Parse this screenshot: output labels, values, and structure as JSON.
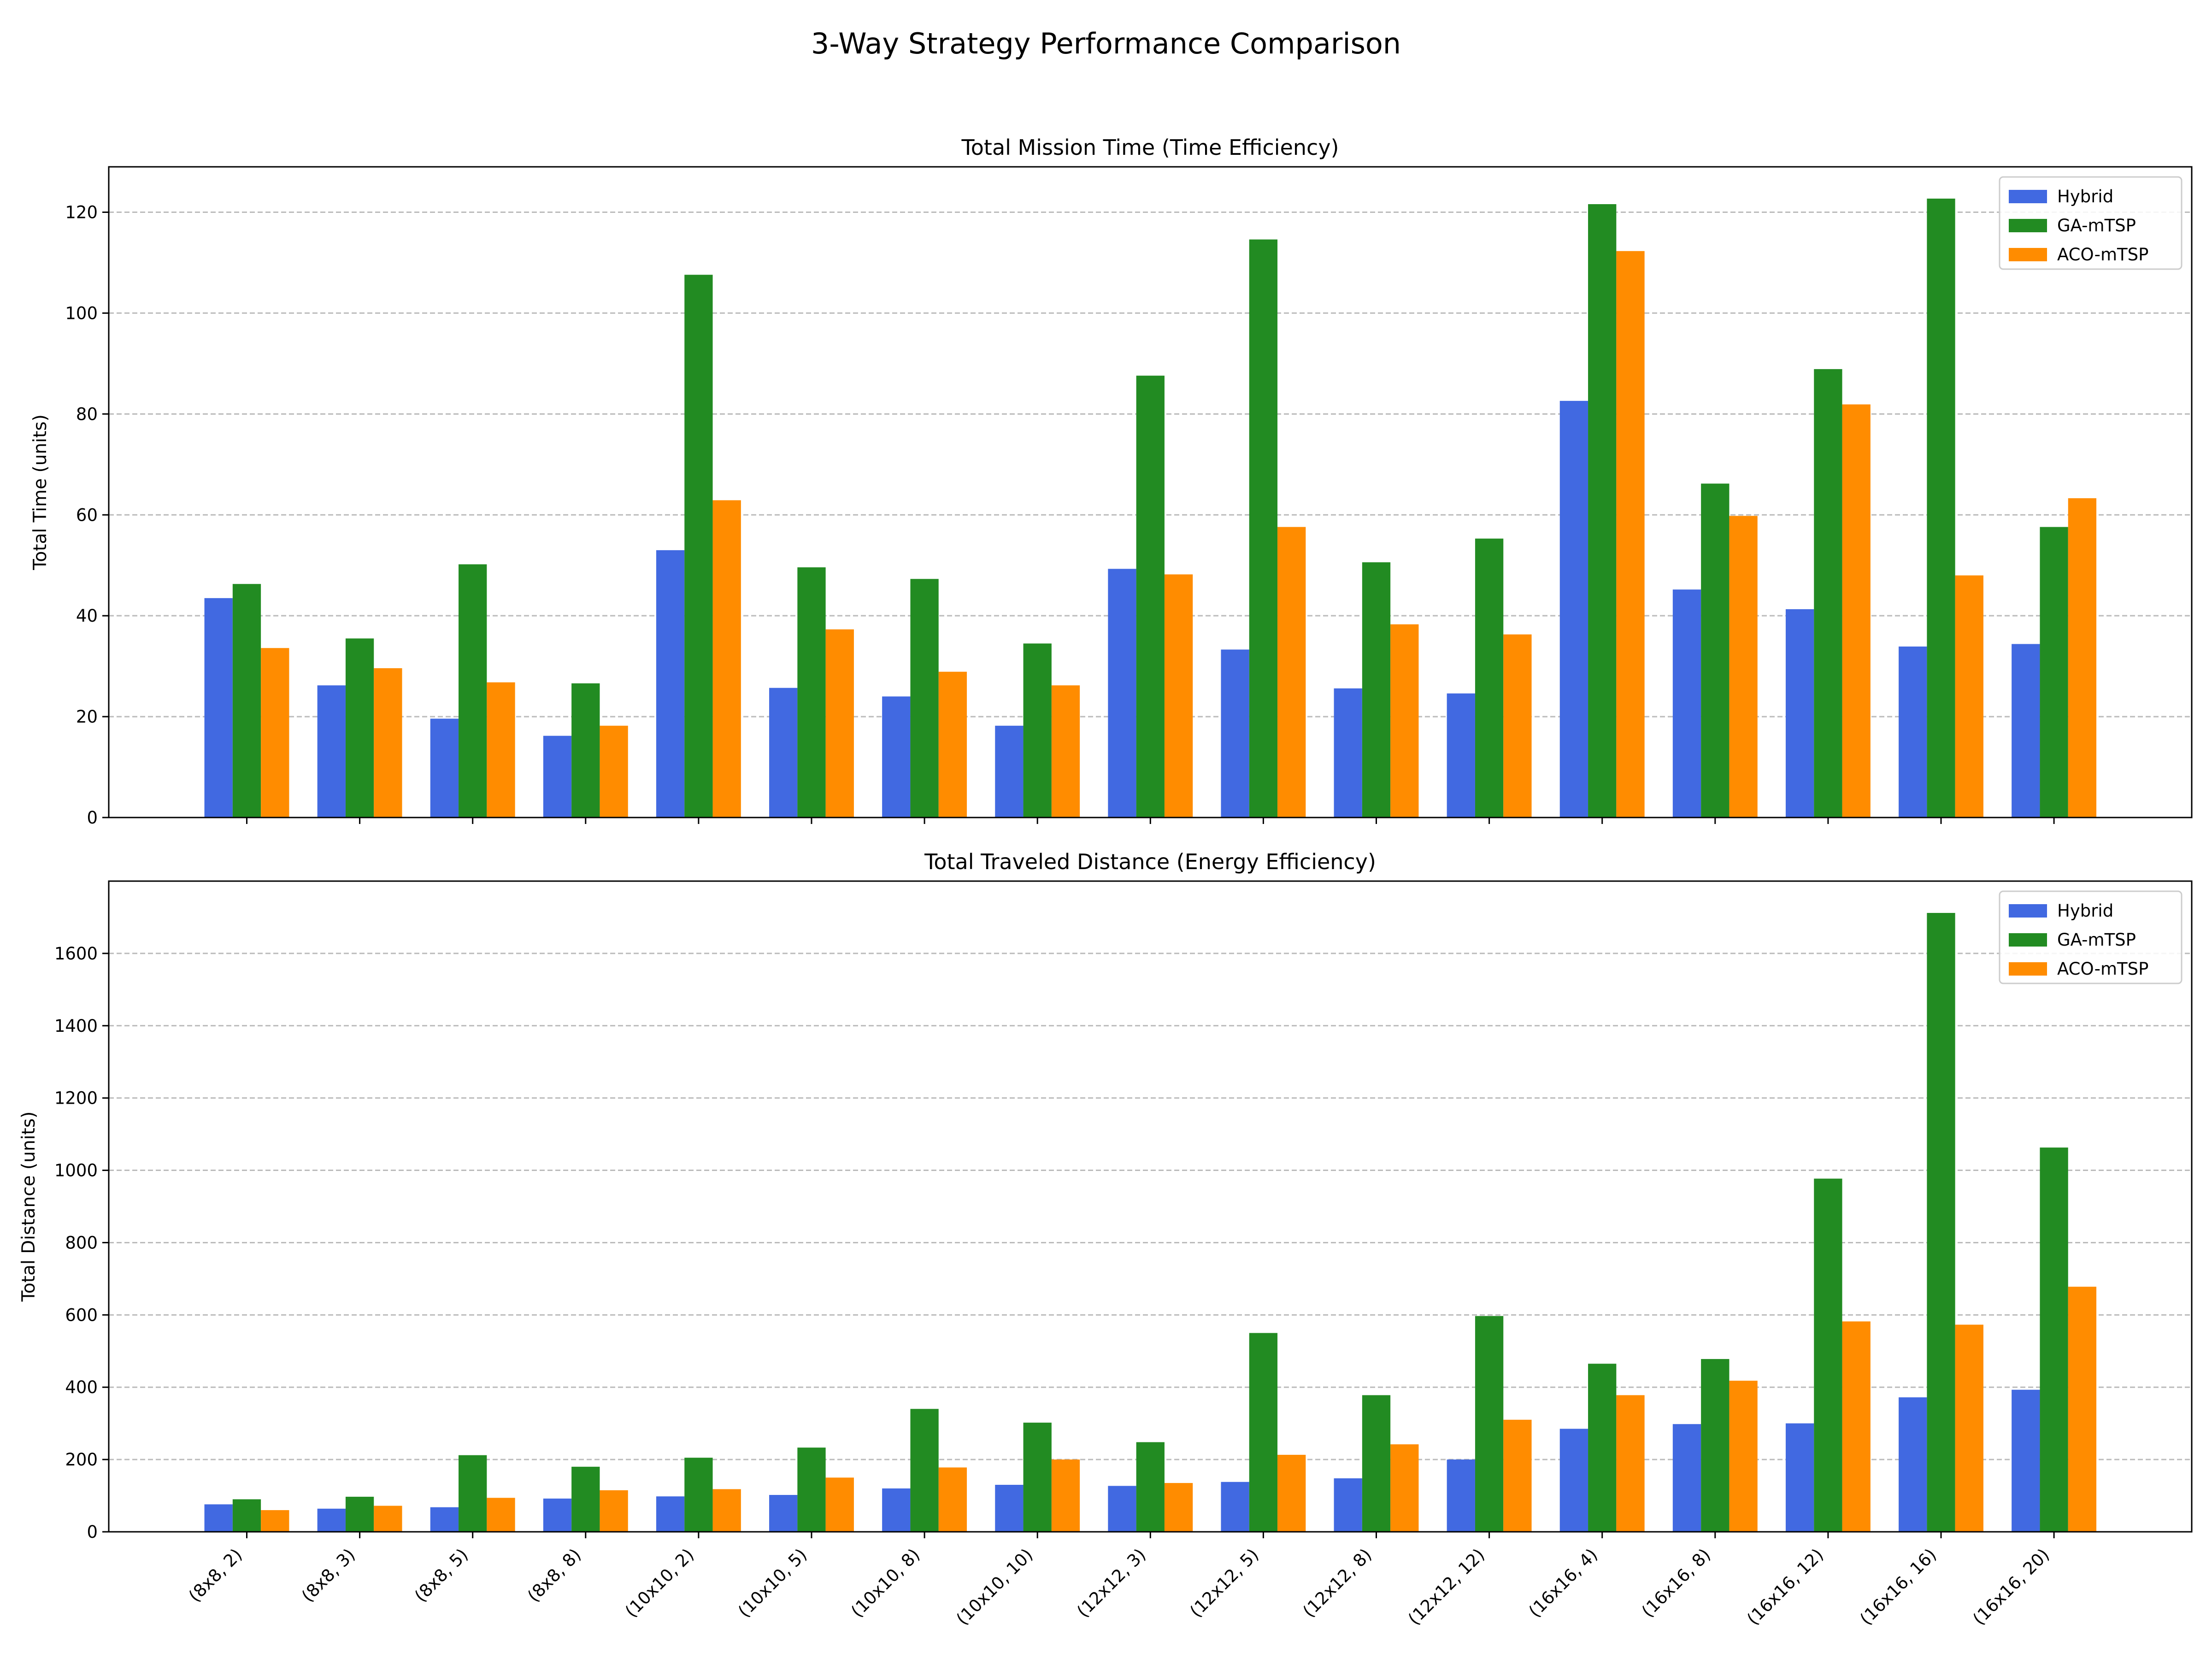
{
  "figure": {
    "title": "3-Way Strategy Performance Comparison"
  },
  "colors": {
    "Hybrid": "#4169e1",
    "GA-mTSP": "#228b22",
    "ACO-mTSP": "#ff8c00",
    "grid": "#bbbbbb"
  },
  "chart_data": [
    {
      "type": "bar",
      "title": "Total Mission Time (Time Efficiency)",
      "xlabel": "",
      "ylabel": "Total Time (units)",
      "ylim": [
        0,
        129
      ],
      "yticks": [
        0,
        20,
        40,
        60,
        80,
        100,
        120
      ],
      "grid": "y-dashed",
      "legend": "top-right",
      "categories": [
        "(8x8, 2)",
        "(8x8, 3)",
        "(8x8, 5)",
        "(8x8, 8)",
        "(10x10, 2)",
        "(10x10, 5)",
        "(10x10, 8)",
        "(10x10, 10)",
        "(12x12, 3)",
        "(12x12, 5)",
        "(12x12, 8)",
        "(12x12, 12)",
        "(16x16, 4)",
        "(16x16, 8)",
        "(16x16, 12)",
        "(16x16, 16)",
        "(16x16, 20)"
      ],
      "show_xticklabels": false,
      "series": [
        {
          "name": "Hybrid",
          "values": [
            43.5,
            26.2,
            19.6,
            16.2,
            53.0,
            25.7,
            24.0,
            18.2,
            49.3,
            33.3,
            25.6,
            24.6,
            82.6,
            45.2,
            41.3,
            33.9,
            34.4
          ]
        },
        {
          "name": "GA-mTSP",
          "values": [
            46.3,
            35.5,
            50.2,
            26.6,
            107.6,
            49.6,
            47.3,
            34.5,
            87.6,
            114.6,
            50.6,
            55.3,
            121.6,
            66.2,
            88.9,
            122.7,
            57.6
          ]
        },
        {
          "name": "ACO-mTSP",
          "values": [
            33.6,
            29.6,
            26.8,
            18.2,
            62.9,
            37.3,
            28.9,
            26.2,
            48.2,
            57.6,
            38.3,
            36.3,
            112.3,
            59.8,
            81.9,
            48.0,
            63.3
          ]
        }
      ]
    },
    {
      "type": "bar",
      "title": "Total Traveled Distance (Energy Efficiency)",
      "xlabel": "",
      "ylabel": "Total Distance (units)",
      "ylim": [
        0,
        1800
      ],
      "yticks": [
        0,
        200,
        400,
        600,
        800,
        1000,
        1200,
        1400,
        1600
      ],
      "grid": "y-dashed",
      "legend": "top-right",
      "categories": [
        "(8x8, 2)",
        "(8x8, 3)",
        "(8x8, 5)",
        "(8x8, 8)",
        "(10x10, 2)",
        "(10x10, 5)",
        "(10x10, 8)",
        "(10x10, 10)",
        "(12x12, 3)",
        "(12x12, 5)",
        "(12x12, 8)",
        "(12x12, 12)",
        "(16x16, 4)",
        "(16x16, 8)",
        "(16x16, 12)",
        "(16x16, 16)",
        "(16x16, 20)"
      ],
      "show_xticklabels": true,
      "series": [
        {
          "name": "Hybrid",
          "values": [
            76,
            64,
            68,
            92,
            98,
            102,
            120,
            130,
            127,
            138,
            148,
            200,
            285,
            298,
            300,
            372,
            393
          ]
        },
        {
          "name": "GA-mTSP",
          "values": [
            90,
            97,
            212,
            180,
            205,
            233,
            340,
            302,
            248,
            550,
            378,
            597,
            465,
            478,
            977,
            1712,
            1063
          ]
        },
        {
          "name": "ACO-mTSP",
          "values": [
            60,
            72,
            94,
            115,
            118,
            150,
            178,
            200,
            135,
            213,
            242,
            310,
            378,
            418,
            582,
            573,
            678
          ]
        }
      ]
    }
  ]
}
